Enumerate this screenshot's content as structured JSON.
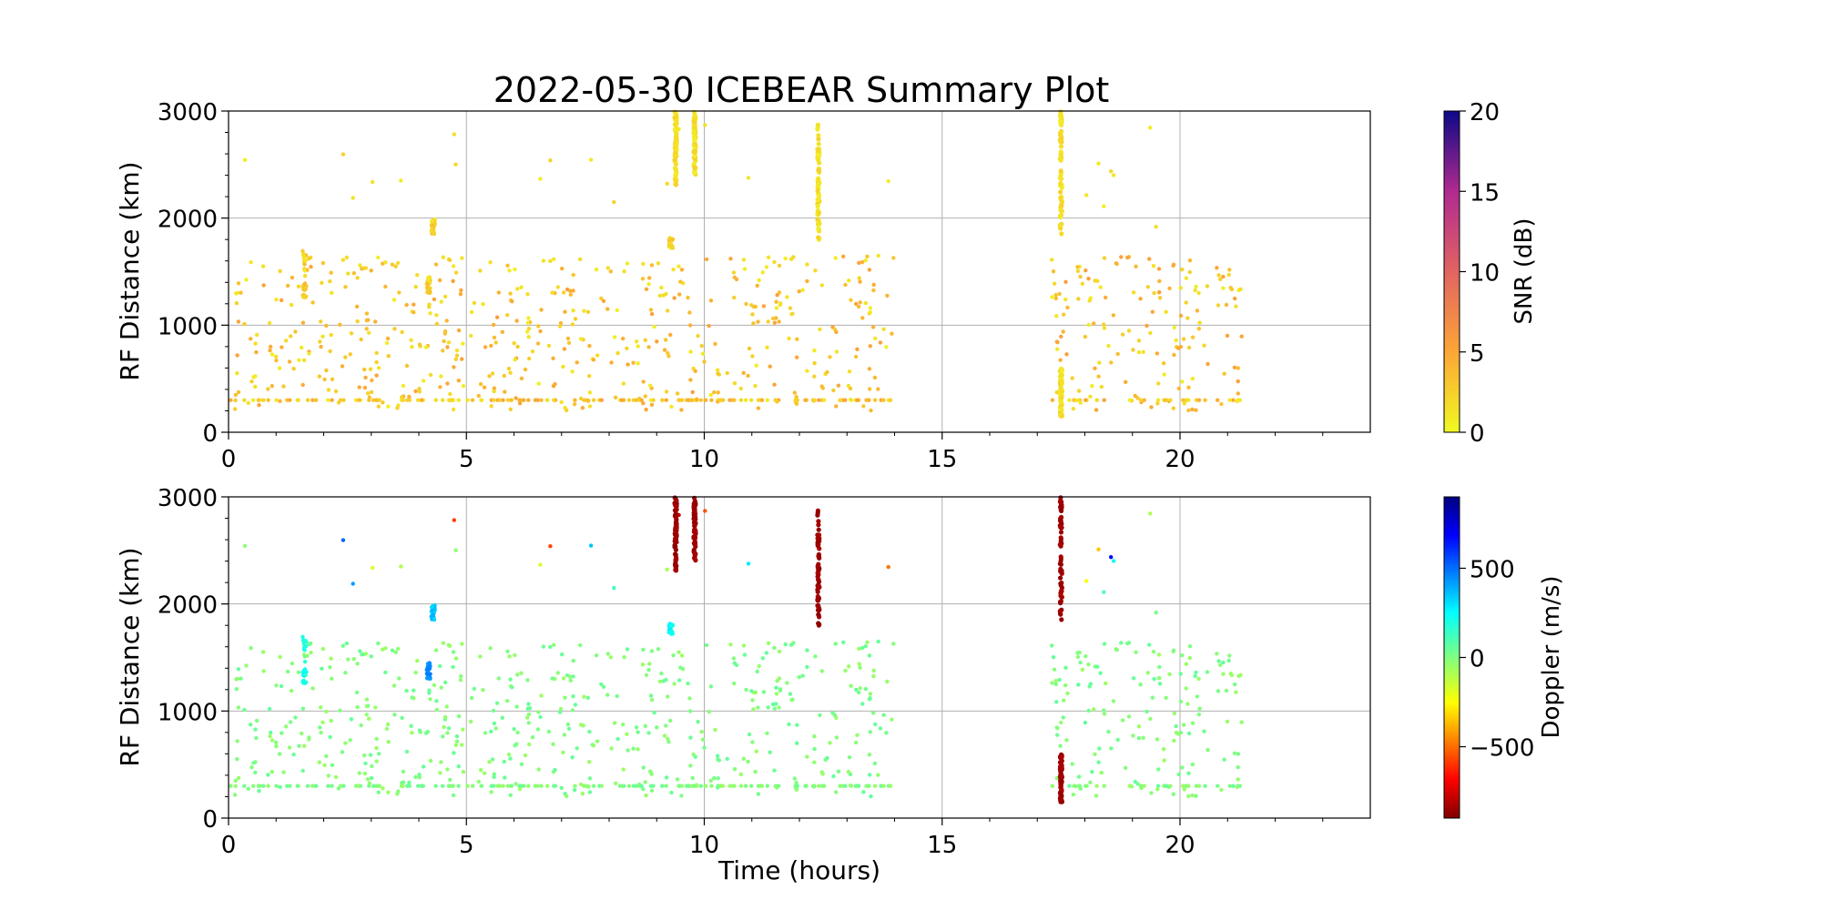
{
  "title": "2022-05-30 ICEBEAR Summary Plot",
  "chart_data": [
    {
      "type": "scatter",
      "panel": "top",
      "ylabel": "RF Distance (km)",
      "xlabel": "",
      "xlim": [
        0,
        24
      ],
      "ylim": [
        0,
        3000
      ],
      "xticks": [
        "0",
        "5",
        "10",
        "15",
        "20"
      ],
      "yticks": [
        "0",
        "1000",
        "2000",
        "3000"
      ],
      "grid": true,
      "color_variable": "snr",
      "colorbar": {
        "label": "SNR (dB)",
        "range": [
          0,
          20
        ],
        "ticks": [
          "0",
          "5",
          "10",
          "15",
          "20"
        ],
        "colormap": "plasma_r"
      },
      "marker_color_range_observed": "yellow to orange (approx. 0–6 dB)",
      "observation_windows_hours": [
        [
          0,
          14
        ],
        [
          17.3,
          21.3
        ]
      ],
      "vertical_streaks": [
        {
          "time_hours": 9.4,
          "range_km": [
            2300,
            3000
          ]
        },
        {
          "time_hours": 9.8,
          "range_km": [
            2400,
            3000
          ]
        },
        {
          "time_hours": 12.4,
          "range_km": [
            1800,
            2900
          ]
        },
        {
          "time_hours": 17.5,
          "range_km": [
            2000,
            3000
          ]
        },
        {
          "time_hours": 17.5,
          "range_km": [
            150,
            600
          ]
        }
      ],
      "clusters": [
        {
          "time_hours": 1.6,
          "range_km": [
            1250,
            1700
          ]
        },
        {
          "time_hours": 4.2,
          "range_km": [
            1300,
            1450
          ]
        },
        {
          "time_hours": 4.3,
          "range_km": [
            1850,
            2000
          ]
        },
        {
          "time_hours": 9.3,
          "range_km": [
            1720,
            1820
          ]
        }
      ],
      "dense_background_range_km": [
        200,
        1650
      ],
      "floor_band_range_km": 300
    },
    {
      "type": "scatter",
      "panel": "bottom",
      "ylabel": "RF Distance (km)",
      "xlabel": "Time (hours)",
      "xlim": [
        0,
        24
      ],
      "ylim": [
        0,
        3000
      ],
      "xticks": [
        "0",
        "5",
        "10",
        "15",
        "20"
      ],
      "yticks": [
        "0",
        "1000",
        "2000",
        "3000"
      ],
      "grid": true,
      "color_variable": "doppler",
      "colorbar": {
        "label": "Doppler (m/s)",
        "range": [
          -900,
          900
        ],
        "ticks": [
          "−500",
          "0",
          "500"
        ],
        "colormap": "jet_r"
      },
      "marker_color_observed": "mostly light green (~0 m/s)",
      "vertical_streaks": [
        {
          "time_hours": 9.4,
          "range_km": [
            2300,
            3000
          ],
          "doppler_ms": -850
        },
        {
          "time_hours": 9.8,
          "range_km": [
            2400,
            3000
          ],
          "doppler_ms": -850
        },
        {
          "time_hours": 12.4,
          "range_km": [
            1800,
            2900
          ],
          "doppler_ms": -850
        },
        {
          "time_hours": 17.5,
          "range_km": [
            1850,
            3000
          ],
          "doppler_ms": -850
        },
        {
          "time_hours": 17.5,
          "range_km": [
            150,
            600
          ],
          "doppler_ms": -850
        }
      ],
      "clusters": [
        {
          "time_hours": 1.6,
          "range_km": [
            1250,
            1700
          ],
          "doppler_ms": 200
        },
        {
          "time_hours": 4.2,
          "range_km": [
            1300,
            1450
          ],
          "doppler_ms": 450
        },
        {
          "time_hours": 4.3,
          "range_km": [
            1850,
            2000
          ],
          "doppler_ms": 350
        },
        {
          "time_hours": 9.3,
          "range_km": [
            1720,
            1820
          ],
          "doppler_ms": 250
        }
      ],
      "dense_background_range_km": [
        200,
        1650
      ],
      "floor_band_range_km": 300
    }
  ]
}
